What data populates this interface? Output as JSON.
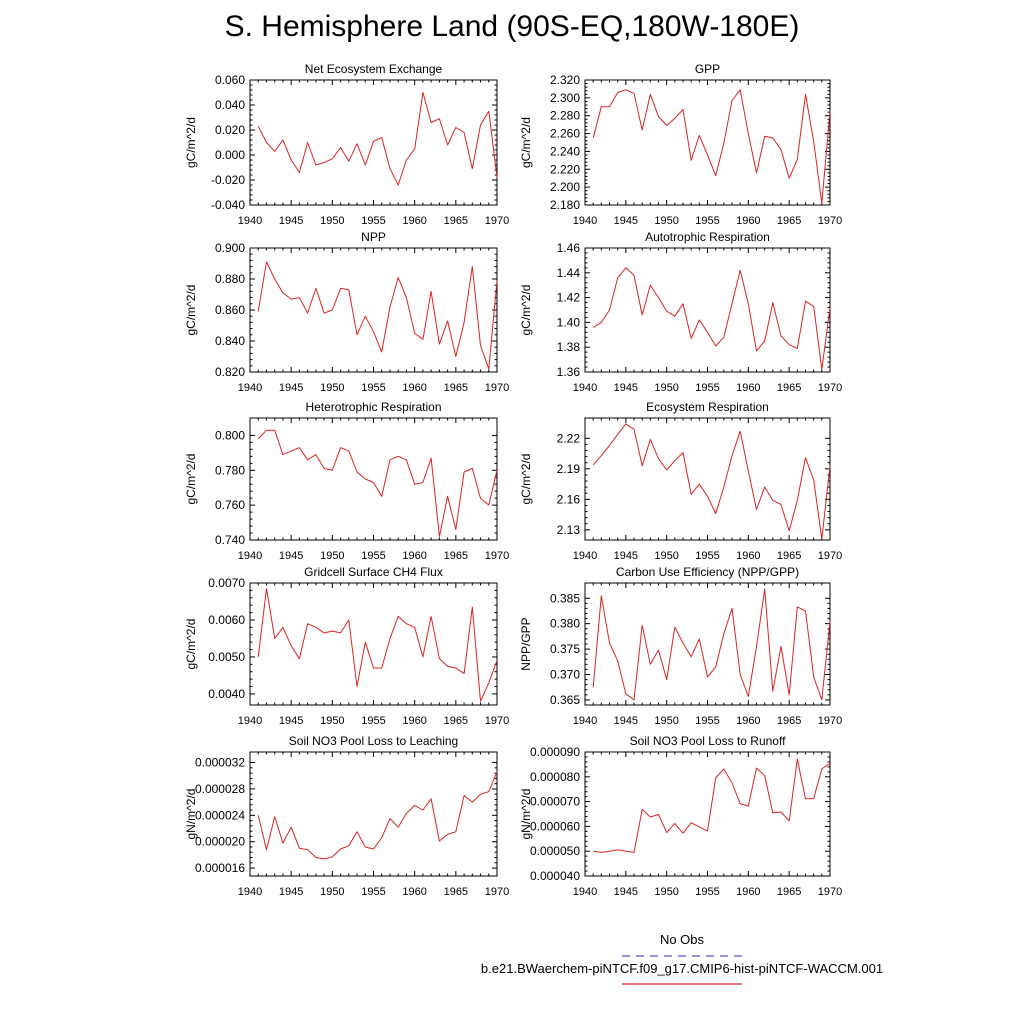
{
  "page": {
    "title": "S. Hemisphere Land (90S-EQ,180W-180E)"
  },
  "legend": {
    "obs_label": "No Obs",
    "obs_color": "#5555cc",
    "case_label": "b.e21.BWaerchem-piNTCF.f09_g17.CMIP6-hist-piNTCF-WACCM.001",
    "case_color": "#dd2222"
  },
  "chart_data": [
    {
      "type": "line",
      "title": "Net Ecosystem Exchange",
      "ylabel": "gC/m^2/d",
      "xlim": [
        1940,
        1970
      ],
      "xticks": [
        1940,
        1945,
        1950,
        1955,
        1960,
        1965,
        1970
      ],
      "ylim": [
        -0.04,
        0.06
      ],
      "yticks": [
        -0.04,
        -0.02,
        0.0,
        0.02,
        0.04,
        0.06
      ],
      "ytick_labels": [
        "-0.040",
        "-0.020",
        "0.000",
        "0.020",
        "0.040",
        "0.060"
      ],
      "line_color": "#dd2222",
      "x": [
        1941,
        1942,
        1943,
        1944,
        1945,
        1946,
        1947,
        1948,
        1949,
        1950,
        1951,
        1952,
        1953,
        1954,
        1955,
        1956,
        1957,
        1958,
        1959,
        1960,
        1961,
        1962,
        1963,
        1964,
        1965,
        1966,
        1967,
        1968,
        1969,
        1970
      ],
      "y": [
        0.023,
        0.01,
        0.003,
        0.012,
        -0.004,
        -0.014,
        0.01,
        -0.008,
        -0.006,
        -0.003,
        0.006,
        -0.005,
        0.009,
        -0.008,
        0.011,
        0.014,
        -0.011,
        -0.024,
        -0.004,
        0.005,
        0.05,
        0.026,
        0.029,
        0.008,
        0.022,
        0.018,
        -0.011,
        0.024,
        0.035,
        -0.018
      ]
    },
    {
      "type": "line",
      "title": "GPP",
      "ylabel": "gC/m^2/d",
      "xlim": [
        1940,
        1970
      ],
      "xticks": [
        1940,
        1945,
        1950,
        1955,
        1960,
        1965,
        1970
      ],
      "ylim": [
        2.18,
        2.32
      ],
      "yticks": [
        2.18,
        2.2,
        2.22,
        2.24,
        2.26,
        2.28,
        2.3,
        2.32
      ],
      "ytick_labels": [
        "2.180",
        "2.200",
        "2.220",
        "2.240",
        "2.260",
        "2.280",
        "2.300",
        "2.320"
      ],
      "line_color": "#dd2222",
      "x": [
        1941,
        1942,
        1943,
        1944,
        1945,
        1946,
        1947,
        1948,
        1949,
        1950,
        1951,
        1952,
        1953,
        1954,
        1955,
        1956,
        1957,
        1958,
        1959,
        1960,
        1961,
        1962,
        1963,
        1964,
        1965,
        1966,
        1967,
        1968,
        1969,
        1970
      ],
      "y": [
        2.255,
        2.29,
        2.29,
        2.306,
        2.309,
        2.305,
        2.264,
        2.304,
        2.279,
        2.269,
        2.277,
        2.287,
        2.23,
        2.258,
        2.236,
        2.213,
        2.249,
        2.297,
        2.309,
        2.26,
        2.216,
        2.257,
        2.255,
        2.242,
        2.21,
        2.231,
        2.304,
        2.251,
        2.182,
        2.285
      ]
    },
    {
      "type": "line",
      "title": "NPP",
      "ylabel": "gC/m^2/d",
      "xlim": [
        1940,
        1970
      ],
      "xticks": [
        1940,
        1945,
        1950,
        1955,
        1960,
        1965,
        1970
      ],
      "ylim": [
        0.82,
        0.9
      ],
      "yticks": [
        0.82,
        0.84,
        0.86,
        0.88,
        0.9
      ],
      "ytick_labels": [
        "0.820",
        "0.840",
        "0.860",
        "0.880",
        "0.900"
      ],
      "line_color": "#dd2222",
      "x": [
        1941,
        1942,
        1943,
        1944,
        1945,
        1946,
        1947,
        1948,
        1949,
        1950,
        1951,
        1952,
        1953,
        1954,
        1955,
        1956,
        1957,
        1958,
        1959,
        1960,
        1961,
        1962,
        1963,
        1964,
        1965,
        1966,
        1967,
        1968,
        1969,
        1970
      ],
      "y": [
        0.859,
        0.891,
        0.88,
        0.871,
        0.867,
        0.868,
        0.858,
        0.874,
        0.858,
        0.86,
        0.874,
        0.873,
        0.844,
        0.856,
        0.846,
        0.833,
        0.862,
        0.881,
        0.868,
        0.845,
        0.841,
        0.872,
        0.838,
        0.853,
        0.83,
        0.852,
        0.888,
        0.837,
        0.822,
        0.879
      ]
    },
    {
      "type": "line",
      "title": "Autotrophic Respiration",
      "ylabel": "gC/m^2/d",
      "xlim": [
        1940,
        1970
      ],
      "xticks": [
        1940,
        1945,
        1950,
        1955,
        1960,
        1965,
        1970
      ],
      "ylim": [
        1.36,
        1.46
      ],
      "yticks": [
        1.36,
        1.38,
        1.4,
        1.42,
        1.44,
        1.46
      ],
      "ytick_labels": [
        "1.36",
        "1.38",
        "1.40",
        "1.42",
        "1.44",
        "1.46"
      ],
      "line_color": "#dd2222",
      "x": [
        1941,
        1942,
        1943,
        1944,
        1945,
        1946,
        1947,
        1948,
        1949,
        1950,
        1951,
        1952,
        1953,
        1954,
        1955,
        1956,
        1957,
        1958,
        1959,
        1960,
        1961,
        1962,
        1963,
        1964,
        1965,
        1966,
        1967,
        1968,
        1969,
        1970
      ],
      "y": [
        1.396,
        1.4,
        1.41,
        1.436,
        1.444,
        1.438,
        1.406,
        1.43,
        1.42,
        1.409,
        1.405,
        1.415,
        1.387,
        1.402,
        1.392,
        1.381,
        1.388,
        1.415,
        1.442,
        1.415,
        1.377,
        1.385,
        1.416,
        1.389,
        1.382,
        1.379,
        1.417,
        1.413,
        1.362,
        1.412
      ]
    },
    {
      "type": "line",
      "title": "Heterotrophic Respiration",
      "ylabel": "gC/m^2/d",
      "xlim": [
        1940,
        1970
      ],
      "xticks": [
        1940,
        1945,
        1950,
        1955,
        1960,
        1965,
        1970
      ],
      "ylim": [
        0.74,
        0.81
      ],
      "yticks": [
        0.74,
        0.76,
        0.78,
        0.8
      ],
      "ytick_labels": [
        "0.740",
        "0.760",
        "0.780",
        "0.800"
      ],
      "line_color": "#dd2222",
      "x": [
        1941,
        1942,
        1943,
        1944,
        1945,
        1946,
        1947,
        1948,
        1949,
        1950,
        1951,
        1952,
        1953,
        1954,
        1955,
        1956,
        1957,
        1958,
        1959,
        1960,
        1961,
        1962,
        1963,
        1964,
        1965,
        1966,
        1967,
        1968,
        1969,
        1970
      ],
      "y": [
        0.798,
        0.803,
        0.803,
        0.789,
        0.791,
        0.793,
        0.786,
        0.789,
        0.781,
        0.78,
        0.793,
        0.791,
        0.779,
        0.775,
        0.773,
        0.765,
        0.786,
        0.788,
        0.786,
        0.772,
        0.773,
        0.787,
        0.742,
        0.765,
        0.746,
        0.779,
        0.781,
        0.764,
        0.76,
        0.78
      ]
    },
    {
      "type": "line",
      "title": "Ecosystem Respiration",
      "ylabel": "gC/m^2/d",
      "xlim": [
        1940,
        1970
      ],
      "xticks": [
        1940,
        1945,
        1950,
        1955,
        1960,
        1965,
        1970
      ],
      "ylim": [
        2.12,
        2.24
      ],
      "yticks": [
        2.13,
        2.16,
        2.19,
        2.22
      ],
      "ytick_labels": [
        "2.13",
        "2.16",
        "2.19",
        "2.22"
      ],
      "line_color": "#dd2222",
      "x": [
        1941,
        1942,
        1943,
        1944,
        1945,
        1946,
        1947,
        1948,
        1949,
        1950,
        1951,
        1952,
        1953,
        1954,
        1955,
        1956,
        1957,
        1958,
        1959,
        1960,
        1961,
        1962,
        1963,
        1964,
        1965,
        1966,
        1967,
        1968,
        1969,
        1970
      ],
      "y": [
        2.194,
        2.203,
        2.213,
        2.224,
        2.234,
        2.229,
        2.193,
        2.219,
        2.2,
        2.189,
        2.198,
        2.206,
        2.165,
        2.175,
        2.163,
        2.146,
        2.172,
        2.203,
        2.227,
        2.188,
        2.15,
        2.172,
        2.159,
        2.155,
        2.129,
        2.159,
        2.201,
        2.179,
        2.121,
        2.193
      ]
    },
    {
      "type": "line",
      "title": "Gridcell Surface CH4 Flux",
      "ylabel": "gC/m^2/d",
      "xlim": [
        1940,
        1970
      ],
      "xticks": [
        1940,
        1945,
        1950,
        1955,
        1960,
        1965,
        1970
      ],
      "ylim": [
        0.0037,
        0.007
      ],
      "yticks": [
        0.004,
        0.005,
        0.006,
        0.007
      ],
      "ytick_labels": [
        "0.0040",
        "0.0050",
        "0.0060",
        "0.0070"
      ],
      "line_color": "#dd2222",
      "x": [
        1941,
        1942,
        1943,
        1944,
        1945,
        1946,
        1947,
        1948,
        1949,
        1950,
        1951,
        1952,
        1953,
        1954,
        1955,
        1956,
        1957,
        1958,
        1959,
        1960,
        1961,
        1962,
        1963,
        1964,
        1965,
        1966,
        1967,
        1968,
        1969,
        1970
      ],
      "y": [
        0.005,
        0.00685,
        0.0055,
        0.0058,
        0.0053,
        0.00495,
        0.0059,
        0.0058,
        0.00565,
        0.0057,
        0.00565,
        0.006,
        0.0042,
        0.0054,
        0.0047,
        0.0047,
        0.0055,
        0.0061,
        0.0059,
        0.0058,
        0.005,
        0.0061,
        0.00495,
        0.00475,
        0.0047,
        0.00455,
        0.00635,
        0.0038,
        0.0043,
        0.0049
      ]
    },
    {
      "type": "line",
      "title": "Carbon Use Efficiency (NPP/GPP)",
      "ylabel": "NPP/GPP",
      "xlim": [
        1940,
        1970
      ],
      "xticks": [
        1940,
        1945,
        1950,
        1955,
        1960,
        1965,
        1970
      ],
      "ylim": [
        0.364,
        0.388
      ],
      "yticks": [
        0.365,
        0.37,
        0.375,
        0.38,
        0.385
      ],
      "ytick_labels": [
        "0.365",
        "0.370",
        "0.375",
        "0.380",
        "0.385"
      ],
      "line_color": "#dd2222",
      "x": [
        1941,
        1942,
        1943,
        1944,
        1945,
        1946,
        1947,
        1948,
        1949,
        1950,
        1951,
        1952,
        1953,
        1954,
        1955,
        1956,
        1957,
        1958,
        1959,
        1960,
        1961,
        1962,
        1963,
        1964,
        1965,
        1966,
        1967,
        1968,
        1969,
        1970
      ],
      "y": [
        0.3675,
        0.3855,
        0.3762,
        0.3727,
        0.3662,
        0.365,
        0.3797,
        0.372,
        0.3748,
        0.369,
        0.3793,
        0.3762,
        0.3735,
        0.377,
        0.3695,
        0.3715,
        0.378,
        0.383,
        0.37,
        0.3657,
        0.3755,
        0.3868,
        0.3667,
        0.3755,
        0.366,
        0.3833,
        0.3825,
        0.3695,
        0.365,
        0.3805
      ]
    },
    {
      "type": "line",
      "title": "Soil NO3 Pool Loss to Leaching",
      "ylabel": "gN/m^2/d",
      "xlim": [
        1940,
        1970
      ],
      "xticks": [
        1940,
        1945,
        1950,
        1955,
        1960,
        1965,
        1970
      ],
      "ylim": [
        1.48e-05,
        3.36e-05
      ],
      "yticks": [
        1.6e-05,
        2e-05,
        2.4e-05,
        2.8e-05,
        3.2e-05
      ],
      "ytick_labels": [
        "0.000016",
        "0.000020",
        "0.000024",
        "0.000028",
        "0.000032"
      ],
      "line_color": "#dd2222",
      "x": [
        1941,
        1942,
        1943,
        1944,
        1945,
        1946,
        1947,
        1948,
        1949,
        1950,
        1951,
        1952,
        1953,
        1954,
        1955,
        1956,
        1957,
        1958,
        1959,
        1960,
        1961,
        1962,
        1963,
        1964,
        1965,
        1966,
        1967,
        1968,
        1969,
        1970
      ],
      "y": [
        2.4e-05,
        1.88e-05,
        2.38e-05,
        1.98e-05,
        2.22e-05,
        1.9e-05,
        1.88e-05,
        1.76e-05,
        1.74e-05,
        1.77e-05,
        1.89e-05,
        1.94e-05,
        2.15e-05,
        1.92e-05,
        1.89e-05,
        2.06e-05,
        2.35e-05,
        2.22e-05,
        2.43e-05,
        2.55e-05,
        2.48e-05,
        2.65e-05,
        2.01e-05,
        2.11e-05,
        2.15e-05,
        2.7e-05,
        2.6e-05,
        2.72e-05,
        2.76e-05,
        3.06e-05
      ]
    },
    {
      "type": "line",
      "title": "Soil NO3 Pool Loss to Runoff",
      "ylabel": "gN/m^2/d",
      "xlim": [
        1940,
        1970
      ],
      "xticks": [
        1940,
        1945,
        1950,
        1955,
        1960,
        1965,
        1970
      ],
      "ylim": [
        4e-05,
        9e-05
      ],
      "yticks": [
        4e-05,
        5e-05,
        6e-05,
        7e-05,
        8e-05,
        9e-05
      ],
      "ytick_labels": [
        "0.000040",
        "0.000050",
        "0.000060",
        "0.000070",
        "0.000080",
        "0.000090"
      ],
      "line_color": "#dd2222",
      "x": [
        1941,
        1942,
        1943,
        1944,
        1945,
        1946,
        1947,
        1948,
        1949,
        1950,
        1951,
        1952,
        1953,
        1954,
        1955,
        1956,
        1957,
        1958,
        1959,
        1960,
        1961,
        1962,
        1963,
        1964,
        1965,
        1966,
        1967,
        1968,
        1969,
        1970
      ],
      "y": [
        5e-05,
        4.95e-05,
        5e-05,
        5.06e-05,
        5e-05,
        4.95e-05,
        6.68e-05,
        6.38e-05,
        6.48e-05,
        5.75e-05,
        6.12e-05,
        5.72e-05,
        6.15e-05,
        5.98e-05,
        5.82e-05,
        7.95e-05,
        8.32e-05,
        7.75e-05,
        6.92e-05,
        6.82e-05,
        8.35e-05,
        8.05e-05,
        6.55e-05,
        6.58e-05,
        6.22e-05,
        8.72e-05,
        7.12e-05,
        7.12e-05,
        8.32e-05,
        8.55e-05
      ]
    }
  ]
}
